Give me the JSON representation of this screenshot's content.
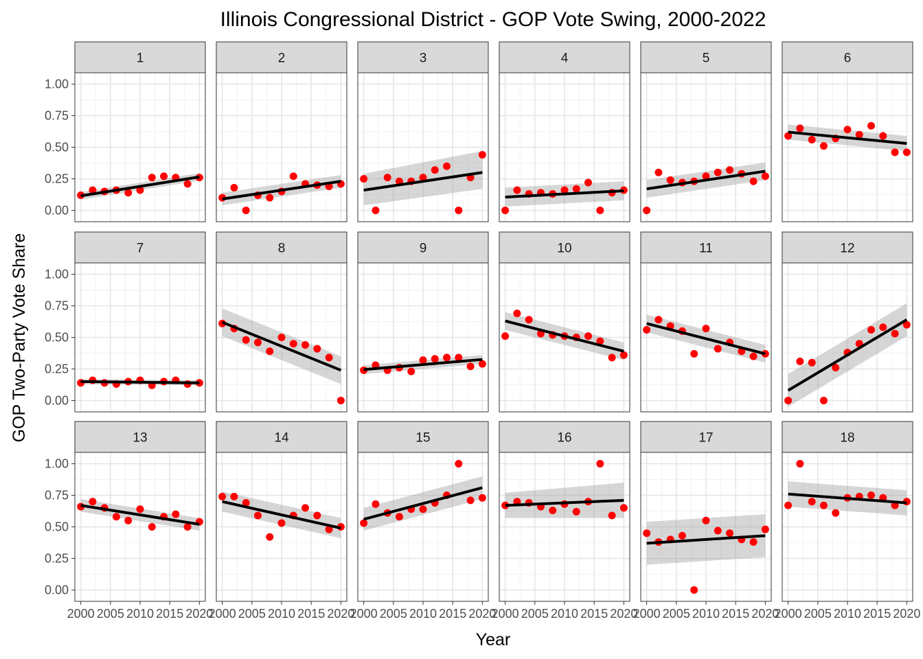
{
  "chart_data": {
    "type": "scatter",
    "title": "Illinois Congressional District - GOP Vote Swing, 2000-2022",
    "xlabel": "Year",
    "ylabel": "GOP Two-Party Vote Share",
    "xlim": [
      1999,
      2021
    ],
    "ylim": [
      -0.09,
      1.09
    ],
    "x_ticks": [
      2000,
      2005,
      2010,
      2015,
      2020
    ],
    "x_tick_labels": [
      "2000",
      "2005",
      "2010",
      "2015",
      "2020"
    ],
    "y_ticks": [
      0,
      0.25,
      0.5,
      0.75,
      1.0
    ],
    "y_tick_labels": [
      "0.00",
      "0.25",
      "0.50",
      "0.75",
      "1.00"
    ],
    "grid": true,
    "point_color": "#ff0000",
    "trend_color": "#000000",
    "band_color": "#999999",
    "strip_color": "#d9d9d9",
    "x": [
      2000,
      2002,
      2004,
      2006,
      2008,
      2010,
      2012,
      2014,
      2016,
      2018,
      2020
    ],
    "facets": [
      {
        "label": "1",
        "values": [
          0.12,
          0.16,
          0.15,
          0.16,
          0.14,
          0.16,
          0.26,
          0.27,
          0.26,
          0.21,
          0.26
        ],
        "trend": [
          0.115,
          0.265
        ],
        "band": [
          [
            0.085,
            0.145
          ],
          [
            0.235,
            0.295
          ]
        ]
      },
      {
        "label": "2",
        "values": [
          0.1,
          0.18,
          0.0,
          0.12,
          0.1,
          0.15,
          0.27,
          0.21,
          0.2,
          0.19,
          0.21
        ],
        "trend": [
          0.09,
          0.23
        ],
        "band": [
          [
            0.04,
            0.14
          ],
          [
            0.18,
            0.28
          ]
        ]
      },
      {
        "label": "3",
        "values": [
          0.25,
          0.0,
          0.26,
          0.23,
          0.23,
          0.26,
          0.32,
          0.35,
          0.0,
          0.26,
          0.44
        ],
        "trend": [
          0.16,
          0.3
        ],
        "band": [
          [
            0.04,
            0.29
          ],
          [
            0.17,
            0.47
          ]
        ]
      },
      {
        "label": "4",
        "values": [
          0.0,
          0.16,
          0.13,
          0.14,
          0.13,
          0.16,
          0.17,
          0.22,
          0.0,
          0.14,
          0.16
        ],
        "trend": [
          0.105,
          0.155
        ],
        "band": [
          [
            0.03,
            0.18
          ],
          [
            0.08,
            0.23
          ]
        ]
      },
      {
        "label": "5",
        "values": [
          0.0,
          0.3,
          0.24,
          0.22,
          0.23,
          0.27,
          0.3,
          0.32,
          0.29,
          0.23,
          0.27
        ],
        "trend": [
          0.17,
          0.31
        ],
        "band": [
          [
            0.1,
            0.24
          ],
          [
            0.24,
            0.38
          ]
        ]
      },
      {
        "label": "6",
        "values": [
          0.59,
          0.65,
          0.56,
          0.51,
          0.57,
          0.64,
          0.6,
          0.67,
          0.59,
          0.46,
          0.46
        ],
        "trend": [
          0.62,
          0.53
        ],
        "band": [
          [
            0.56,
            0.68
          ],
          [
            0.47,
            0.59
          ]
        ]
      },
      {
        "label": "7",
        "values": [
          0.14,
          0.16,
          0.14,
          0.13,
          0.15,
          0.16,
          0.12,
          0.15,
          0.16,
          0.13,
          0.14
        ],
        "trend": [
          0.15,
          0.14
        ],
        "band": [
          [
            0.13,
            0.17
          ],
          [
            0.12,
            0.16
          ]
        ]
      },
      {
        "label": "8",
        "values": [
          0.61,
          0.57,
          0.48,
          0.46,
          0.39,
          0.5,
          0.45,
          0.44,
          0.41,
          0.34,
          0.0
        ],
        "trend": [
          0.62,
          0.24
        ],
        "band": [
          [
            0.51,
            0.73
          ],
          [
            0.13,
            0.35
          ]
        ]
      },
      {
        "label": "9",
        "values": [
          0.24,
          0.28,
          0.24,
          0.26,
          0.23,
          0.32,
          0.33,
          0.34,
          0.34,
          0.27,
          0.29
        ],
        "trend": [
          0.245,
          0.325
        ],
        "band": [
          [
            0.21,
            0.28
          ],
          [
            0.29,
            0.36
          ]
        ]
      },
      {
        "label": "10",
        "values": [
          0.51,
          0.69,
          0.64,
          0.53,
          0.52,
          0.51,
          0.5,
          0.51,
          0.47,
          0.34,
          0.36
        ],
        "trend": [
          0.63,
          0.39
        ],
        "band": [
          [
            0.56,
            0.7
          ],
          [
            0.32,
            0.46
          ]
        ]
      },
      {
        "label": "11",
        "values": [
          0.56,
          0.64,
          0.59,
          0.55,
          0.37,
          0.57,
          0.41,
          0.46,
          0.39,
          0.35,
          0.37
        ],
        "trend": [
          0.61,
          0.37
        ],
        "band": [
          [
            0.54,
            0.68
          ],
          [
            0.3,
            0.44
          ]
        ]
      },
      {
        "label": "12",
        "values": [
          0.0,
          0.31,
          0.3,
          0.0,
          0.26,
          0.38,
          0.45,
          0.56,
          0.58,
          0.53,
          0.6
        ],
        "trend": [
          0.08,
          0.64
        ],
        "band": [
          [
            -0.05,
            0.21
          ],
          [
            0.51,
            0.77
          ]
        ]
      },
      {
        "label": "13",
        "values": [
          0.66,
          0.7,
          0.65,
          0.58,
          0.55,
          0.64,
          0.5,
          0.58,
          0.6,
          0.5,
          0.54
        ],
        "trend": [
          0.67,
          0.52
        ],
        "band": [
          [
            0.62,
            0.72
          ],
          [
            0.47,
            0.57
          ]
        ]
      },
      {
        "label": "14",
        "values": [
          0.74,
          0.74,
          0.69,
          0.59,
          0.42,
          0.53,
          0.59,
          0.65,
          0.59,
          0.48,
          0.5
        ],
        "trend": [
          0.7,
          0.49
        ],
        "band": [
          [
            0.62,
            0.78
          ],
          [
            0.41,
            0.57
          ]
        ]
      },
      {
        "label": "15",
        "values": [
          0.53,
          0.68,
          0.61,
          0.58,
          0.64,
          0.64,
          0.69,
          0.75,
          1.0,
          0.71,
          0.73
        ],
        "trend": [
          0.56,
          0.81
        ],
        "band": [
          [
            0.47,
            0.65
          ],
          [
            0.72,
            0.9
          ]
        ]
      },
      {
        "label": "16",
        "values": [
          0.67,
          0.7,
          0.69,
          0.66,
          0.63,
          0.68,
          0.62,
          0.7,
          1.0,
          0.59,
          0.65
        ],
        "trend": [
          0.67,
          0.71
        ],
        "band": [
          [
            0.57,
            0.77
          ],
          [
            0.57,
            0.85
          ]
        ]
      },
      {
        "label": "17",
        "values": [
          0.45,
          0.38,
          0.4,
          0.43,
          0.0,
          0.55,
          0.47,
          0.45,
          0.4,
          0.38,
          0.48
        ],
        "trend": [
          0.37,
          0.43
        ],
        "band": [
          [
            0.2,
            0.54
          ],
          [
            0.26,
            0.6
          ]
        ]
      },
      {
        "label": "18",
        "values": [
          0.67,
          1.0,
          0.7,
          0.67,
          0.61,
          0.73,
          0.74,
          0.75,
          0.73,
          0.67,
          0.7
        ],
        "trend": [
          0.76,
          0.69
        ],
        "band": [
          [
            0.66,
            0.86
          ],
          [
            0.59,
            0.79
          ]
        ]
      }
    ]
  }
}
